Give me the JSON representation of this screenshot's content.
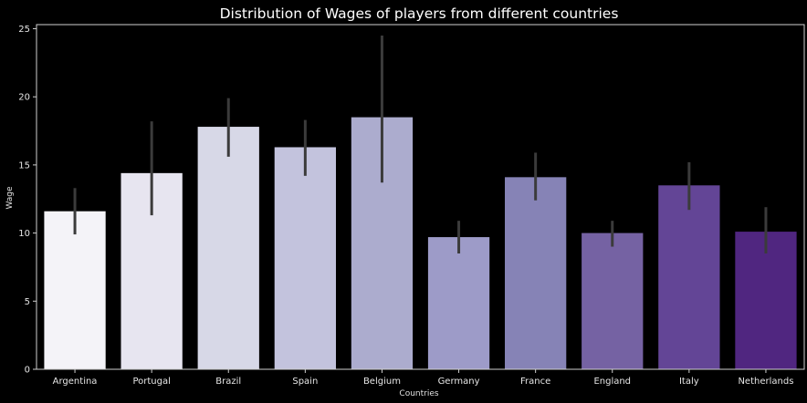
{
  "chart_data": {
    "type": "bar",
    "title": "Distribution of Wages of players from different countries",
    "xlabel": "Countries",
    "ylabel": "Wage",
    "ylim": [
      0,
      25.3
    ],
    "yticks": [
      0,
      5,
      10,
      15,
      20,
      25
    ],
    "grid": false,
    "categories": [
      "Argentina",
      "Portugal",
      "Brazil",
      "Spain",
      "Belgium",
      "Germany",
      "France",
      "England",
      "Italy",
      "Netherlands"
    ],
    "values": [
      11.6,
      14.4,
      17.8,
      16.3,
      18.5,
      9.7,
      14.1,
      10.0,
      13.5,
      10.1
    ],
    "error_bars": [
      [
        9.9,
        13.3
      ],
      [
        11.3,
        18.2
      ],
      [
        15.6,
        19.9
      ],
      [
        14.2,
        18.3
      ],
      [
        13.7,
        24.5
      ],
      [
        8.5,
        10.9
      ],
      [
        12.4,
        15.9
      ],
      [
        9.0,
        10.9
      ],
      [
        11.7,
        15.2
      ],
      [
        8.5,
        11.9
      ]
    ],
    "colors": [
      "#f4f3f8",
      "#e7e5f0",
      "#d7d8e7",
      "#c3c3dd",
      "#acacce",
      "#9d9bc8",
      "#8683b6",
      "#7562a3",
      "#634596",
      "#502680"
    ],
    "errorbar_color": "#3b3b3b",
    "axes_color": "#cfcfcf",
    "background": "#000000"
  }
}
